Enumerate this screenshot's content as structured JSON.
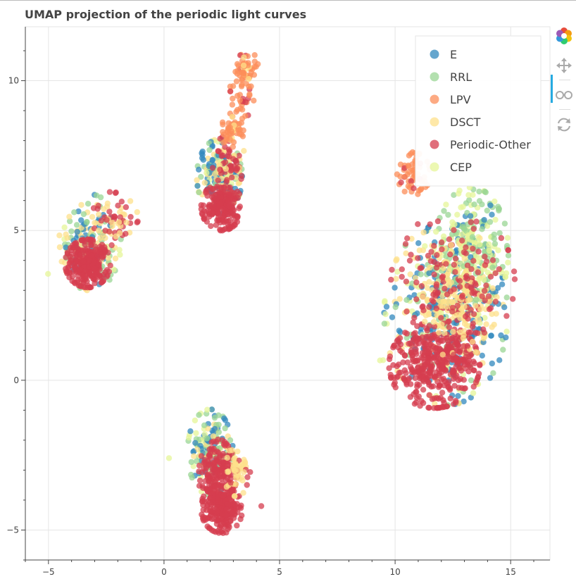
{
  "title": "UMAP projection of the periodic light curves",
  "chart_data": {
    "type": "scatter",
    "title": "UMAP projection of the periodic light curves",
    "xlabel": "",
    "ylabel": "",
    "xlim": [
      -6,
      16.7
    ],
    "ylim": [
      -6,
      11.8
    ],
    "xticks": [
      -5,
      0,
      5,
      10,
      15
    ],
    "yticks": [
      -5,
      0,
      5,
      10
    ],
    "xtick_labels": [
      "−5",
      "0",
      "5",
      "10",
      "15"
    ],
    "ytick_labels": [
      "−5",
      "0",
      "5",
      "10"
    ],
    "grid": true,
    "legend_position": "top-right",
    "series": [
      {
        "name": "E",
        "color": "#3288bd"
      },
      {
        "name": "RRL",
        "color": "#99d594"
      },
      {
        "name": "LPV",
        "color": "#fc8d59"
      },
      {
        "name": "DSCT",
        "color": "#fee08b"
      },
      {
        "name": "Periodic-Other",
        "color": "#d53e4f"
      },
      {
        "name": "CEP",
        "color": "#e6f598"
      }
    ],
    "clusters": [
      {
        "label": "left",
        "x_range": [
          -4.5,
          -1
        ],
        "y_range": [
          2.6,
          6.5
        ]
      },
      {
        "label": "upper-middle",
        "x_range": [
          1.2,
          4.3
        ],
        "y_range": [
          5.1,
          11
        ]
      },
      {
        "label": "lower-middle",
        "x_range": [
          0.7,
          4.2
        ],
        "y_range": [
          -5.2,
          -0.7
        ]
      },
      {
        "label": "right",
        "x_range": [
          9.7,
          15.5
        ],
        "y_range": [
          -1,
          7.8
        ]
      }
    ]
  },
  "toolbar": {
    "logo_icon": "bokeh-logo-icon",
    "pan_icon": "pan-tool-icon",
    "zoom_icon": "wheel-zoom-icon",
    "reset_icon": "reset-icon"
  }
}
